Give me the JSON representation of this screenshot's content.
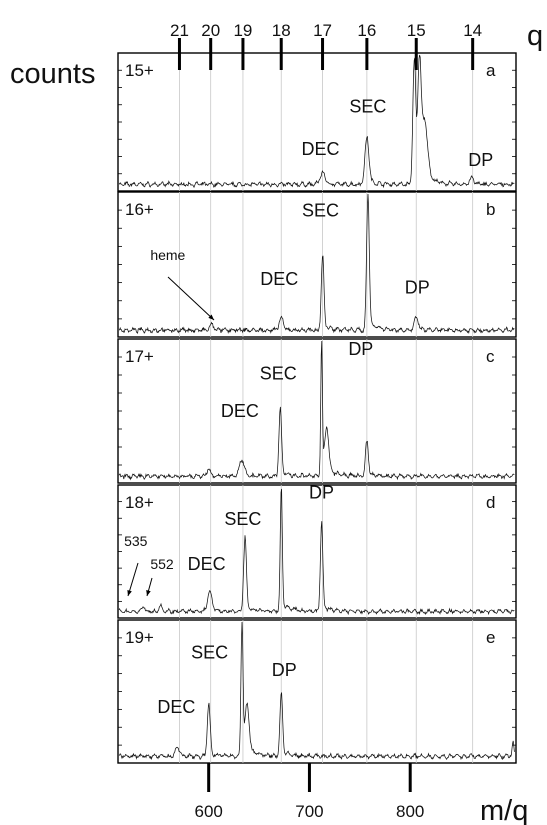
{
  "chart_data": {
    "type": "line",
    "xlabel": "m/q",
    "ylabel": "counts",
    "q_axis_label": "q",
    "xlim": [
      510,
      905
    ],
    "x_ticks": [
      600,
      700,
      800
    ],
    "q_ticks": [
      {
        "label": "21",
        "x": 571
      },
      {
        "label": "20",
        "x": 602
      },
      {
        "label": "19",
        "x": 634
      },
      {
        "label": "18",
        "x": 672
      },
      {
        "label": "17",
        "x": 713
      },
      {
        "label": "16",
        "x": 757
      },
      {
        "label": "15",
        "x": 806
      },
      {
        "label": "14",
        "x": 862
      }
    ],
    "panels": [
      {
        "charge": "15+",
        "letter": "a",
        "peaks": [
          {
            "x": 713,
            "h": 0.09,
            "w": 2.5
          },
          {
            "x": 757,
            "h": 0.36,
            "w": 2.0
          },
          {
            "x": 804,
            "h": 0.98,
            "w": 1.4
          },
          {
            "x": 809,
            "h": 0.88,
            "w": 1.6
          },
          {
            "x": 814,
            "h": 0.45,
            "w": 3.0
          },
          {
            "x": 861,
            "h": 0.05,
            "w": 2.0
          }
        ],
        "annotations": [
          {
            "text": "DEC",
            "x": 711,
            "y": 0.26
          },
          {
            "text": "SEC",
            "x": 758,
            "y": 0.57
          },
          {
            "text": "DP",
            "x": 870,
            "y": 0.18
          }
        ]
      },
      {
        "charge": "16+",
        "letter": "b",
        "peaks": [
          {
            "x": 603,
            "h": 0.04,
            "w": 2.0
          },
          {
            "x": 672,
            "h": 0.09,
            "w": 2.0
          },
          {
            "x": 713,
            "h": 0.55,
            "w": 1.3
          },
          {
            "x": 758,
            "h": 1.0,
            "w": 1.3
          },
          {
            "x": 806,
            "h": 0.09,
            "w": 2.0
          }
        ],
        "annotations": [
          {
            "text": "heme",
            "x": 552,
            "y": 0.53
          },
          {
            "text": "DEC",
            "x": 670,
            "y": 0.36
          },
          {
            "text": "SEC",
            "x": 711,
            "y": 0.83
          },
          {
            "text": "DP",
            "x": 807,
            "y": 0.3
          }
        ]
      },
      {
        "charge": "17+",
        "letter": "c",
        "peaks": [
          {
            "x": 600,
            "h": 0.05,
            "w": 2.0
          },
          {
            "x": 633,
            "h": 0.12,
            "w": 2.5
          },
          {
            "x": 671,
            "h": 0.5,
            "w": 1.3
          },
          {
            "x": 712,
            "h": 1.0,
            "w": 0.8
          },
          {
            "x": 717,
            "h": 0.32,
            "w": 2.0
          },
          {
            "x": 757,
            "h": 0.26,
            "w": 1.4
          }
        ],
        "annotations": [
          {
            "text": "DEC",
            "x": 631,
            "y": 0.46
          },
          {
            "text": "SEC",
            "x": 669,
            "y": 0.72
          },
          {
            "text": "DP",
            "x": 751,
            "y": 0.89
          }
        ]
      },
      {
        "charge": "18+",
        "letter": "d",
        "peaks": [
          {
            "x": 535,
            "h": 0.04,
            "w": 1.5
          },
          {
            "x": 552,
            "h": 0.05,
            "w": 1.5
          },
          {
            "x": 601,
            "h": 0.16,
            "w": 2.2
          },
          {
            "x": 636,
            "h": 0.58,
            "w": 1.4
          },
          {
            "x": 672,
            "h": 1.0,
            "w": 1.0
          },
          {
            "x": 712,
            "h": 0.71,
            "w": 1.2
          }
        ],
        "annotations": [
          {
            "text": "535",
            "x": 526,
            "y": 0.54
          },
          {
            "text": "552",
            "x": 552,
            "y": 0.37
          },
          {
            "text": "DEC",
            "x": 598,
            "y": 0.36
          },
          {
            "text": "SEC",
            "x": 634,
            "y": 0.7
          },
          {
            "text": "DP",
            "x": 712,
            "y": 0.9
          }
        ]
      },
      {
        "charge": "19+",
        "letter": "e",
        "peaks": [
          {
            "x": 569,
            "h": 0.07,
            "w": 2.0
          },
          {
            "x": 600,
            "h": 0.39,
            "w": 1.4
          },
          {
            "x": 633,
            "h": 1.0,
            "w": 1.0
          },
          {
            "x": 638,
            "h": 0.35,
            "w": 2.0
          },
          {
            "x": 672,
            "h": 0.47,
            "w": 1.3
          },
          {
            "x": 902,
            "h": 0.09,
            "w": 1.0
          }
        ],
        "annotations": [
          {
            "text": "DEC",
            "x": 568,
            "y": 0.35
          },
          {
            "text": "SEC",
            "x": 601,
            "y": 0.73
          },
          {
            "text": "DP",
            "x": 675,
            "y": 0.61
          }
        ]
      }
    ]
  }
}
